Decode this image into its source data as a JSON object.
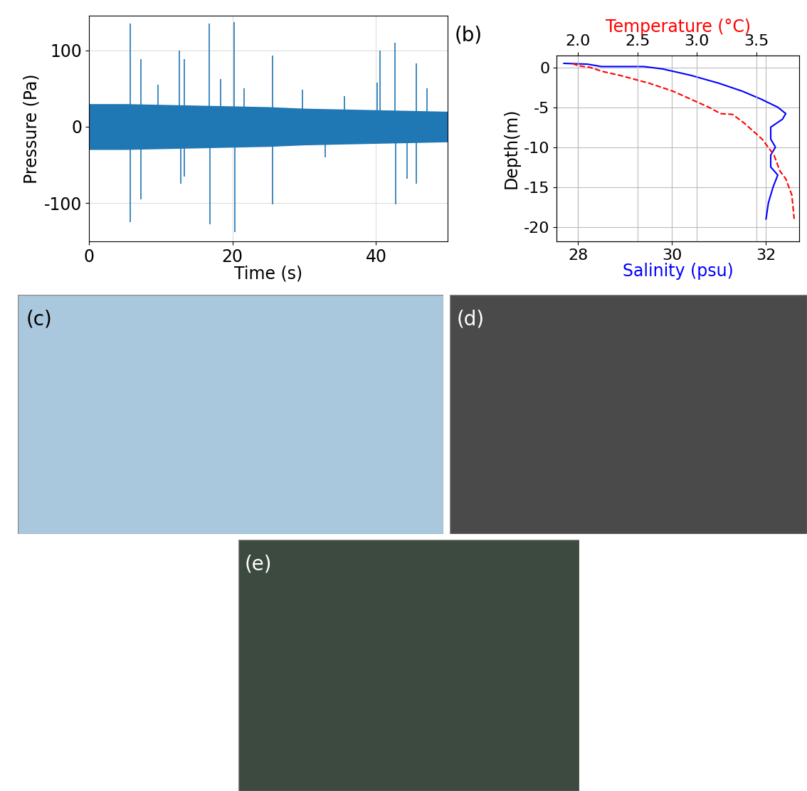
{
  "chart_data": [
    {
      "type": "line",
      "x_label": "Time (s)",
      "y_label": "Pressure (Pa)",
      "xlim": [
        0,
        50
      ],
      "xticks": [
        0,
        20,
        40
      ],
      "ylim": [
        -150,
        145
      ],
      "yticks": [
        -100,
        0,
        100
      ],
      "grid": true,
      "series": [
        {
          "type": "area",
          "color": "#1f77b4",
          "x": [
            0,
            5,
            10,
            15,
            20,
            25,
            30,
            35,
            40,
            45,
            50
          ],
          "values": [
            30,
            30,
            29,
            28,
            27,
            26,
            24,
            23,
            22,
            21,
            20
          ],
          "lower": [
            -30,
            -30,
            -29,
            -28,
            -27,
            -26,
            -24,
            -23,
            -22,
            -21,
            -20
          ]
        },
        {
          "type": "spike",
          "color": "#1f77b4",
          "x": [
            5.8,
            5.8,
            7.3,
            7.3,
            9.6,
            12.6,
            12.8,
            13.3,
            13.3,
            16.8,
            16.9,
            18.4,
            20.2,
            20.3,
            21.6,
            25.6,
            25.6,
            29.8,
            32.9,
            35.6,
            40.2,
            40.6,
            42.6,
            42.7,
            44.3,
            45.6,
            45.6,
            47.1
          ],
          "values": [
            135,
            -125,
            88,
            -95,
            55,
            100,
            -75,
            88,
            -65,
            135,
            -128,
            62,
            137,
            -138,
            50,
            93,
            -102,
            48,
            -40,
            40,
            58,
            100,
            110,
            -102,
            -68,
            83,
            -75,
            50
          ]
        }
      ]
    },
    {
      "type": "line",
      "annotations": [
        "(b)"
      ],
      "x_label": "Salinity (psu)",
      "y_label": "Depth(m)",
      "x2_label": "Temperature (°C)",
      "xlim": [
        27.55,
        32.7
      ],
      "xticks": [
        28,
        30,
        32
      ],
      "x2lim": [
        1.82,
        3.86
      ],
      "x2ticks": [
        {
          "value": 2.0,
          "label": "2.0"
        },
        {
          "value": 2.5,
          "label": "2.5"
        },
        {
          "value": 3.0,
          "label": "3.0"
        },
        {
          "value": 3.5,
          "label": "3.5"
        }
      ],
      "ylim": [
        -21.8,
        1.5
      ],
      "yticks": [
        -20,
        -15,
        -10,
        -5,
        0
      ],
      "grid": true,
      "series": [
        {
          "axis": "x",
          "color": "blue",
          "line_style": "solid",
          "x": [
            27.7,
            28.2,
            28.5,
            29.4,
            29.8,
            30.4,
            31.0,
            31.5,
            31.9,
            32.25,
            32.42,
            32.35,
            32.1,
            32.1,
            32.2,
            32.1,
            32.1,
            32.25,
            32.15,
            32.1,
            32.05,
            32.0
          ],
          "values": [
            0.5,
            0.4,
            0.1,
            0.1,
            -0.2,
            -1,
            -2,
            -3,
            -4,
            -5,
            -5.8,
            -6.5,
            -7.5,
            -9,
            -10,
            -11,
            -12.5,
            -13.5,
            -15,
            -16,
            -17,
            -19
          ]
        },
        {
          "axis": "x2",
          "color": "red",
          "line_style": "dashed",
          "x": [
            1.95,
            2.0,
            2.1,
            2.2,
            2.35,
            2.6,
            2.8,
            2.95,
            3.1,
            3.2,
            3.3,
            3.4,
            3.55,
            3.65,
            3.7,
            3.75,
            3.8,
            3.82
          ],
          "values": [
            0.5,
            0.2,
            0,
            -0.5,
            -1,
            -2,
            -3,
            -4,
            -5,
            -5.8,
            -5.9,
            -7,
            -9,
            -11,
            -13,
            -14,
            -16,
            -19
          ]
        }
      ]
    }
  ],
  "images": [
    {
      "label": "(c)"
    },
    {
      "label": "(d)"
    },
    {
      "label": "(e)"
    }
  ]
}
